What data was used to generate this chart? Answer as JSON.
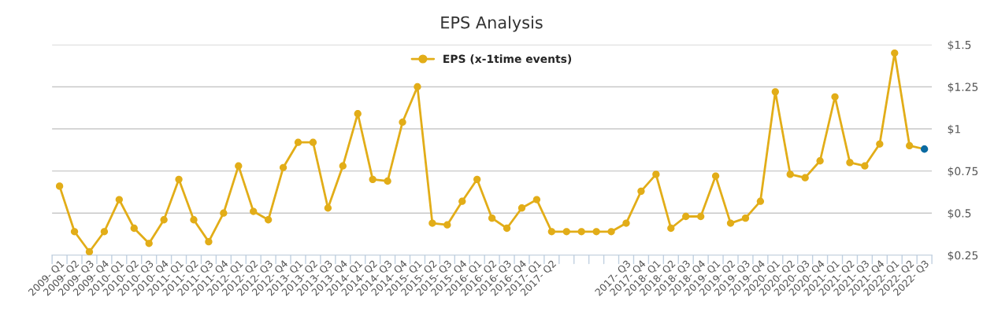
{
  "chart_data": {
    "type": "line",
    "title": "EPS Analysis",
    "categories": [
      "2009- Q1",
      "2009- Q2",
      "2009- Q3",
      "2009- Q4",
      "2010- Q1",
      "2010- Q2",
      "2010- Q3",
      "2010- Q4",
      "2011- Q1",
      "2011- Q2",
      "2011- Q3",
      "2011- Q4",
      "2012- Q1",
      "2012- Q2",
      "2012- Q3",
      "2012- Q4",
      "2013- Q1",
      "2013- Q2",
      "2013- Q3",
      "2013- Q4",
      "2014- Q1",
      "2014- Q2",
      "2014- Q3",
      "2014- Q4",
      "2015- Q1",
      "2015- Q2",
      "2015- Q3",
      "2015- Q4",
      "2016- Q1",
      "2016- Q2",
      "2016- Q3",
      "2016- Q4",
      "2017- Q1",
      "2017- Q2",
      null,
      null,
      null,
      null,
      "2017- Q3",
      "2017- Q4",
      "2018- Q1",
      "2018- Q2",
      "2018- Q3",
      "2018- Q4",
      "2019- Q1",
      "2019- Q2",
      "2019- Q3",
      "2019- Q4",
      "2020- Q1",
      "2020- Q2",
      "2020- Q3",
      "2020- Q4",
      "2021- Q1",
      "2021- Q2",
      "2021- Q3",
      "2021- Q4",
      "2022- Q1",
      "2022- Q2",
      "2022- Q3"
    ],
    "series": [
      {
        "name": "EPS (x-1time events)",
        "color": "#e2ad18",
        "colors": [
          "#e2ad18",
          "#e2ad18",
          "#e2ad18",
          "#e2ad18",
          "#e2ad18",
          "#e2ad18",
          "#e2ad18",
          "#e2ad18",
          "#e2ad18",
          "#e2ad18",
          "#e2ad18",
          "#e2ad18",
          "#e2ad18",
          "#e2ad18",
          "#e2ad18",
          "#e2ad18",
          "#e2ad18",
          "#e2ad18",
          "#e2ad18",
          "#e2ad18",
          "#e2ad18",
          "#e2ad18",
          "#e2ad18",
          "#e2ad18",
          "#e2ad18",
          "#e2ad18",
          "#e2ad18",
          "#e2ad18",
          "#e2ad18",
          "#e2ad18",
          "#e2ad18",
          "#e2ad18",
          "#e2ad18",
          "#e2ad18",
          "#e2ad18",
          "#e2ad18",
          "#e2ad18",
          "#e2ad18",
          "#e2ad18",
          "#e2ad18",
          "#e2ad18",
          "#e2ad18",
          "#e2ad18",
          "#e2ad18",
          "#e2ad18",
          "#e2ad18",
          "#e2ad18",
          "#e2ad18",
          "#e2ad18",
          "#e2ad18",
          "#e2ad18",
          "#e2ad18",
          "#e2ad18",
          "#e2ad18",
          "#e2ad18",
          "#e2ad18",
          "#e2ad18",
          "#e2ad18",
          "#0a6aa1"
        ],
        "values": [
          0.66,
          0.39,
          0.27,
          0.39,
          0.58,
          0.41,
          0.32,
          0.46,
          0.7,
          0.46,
          0.33,
          0.5,
          0.78,
          0.51,
          0.46,
          0.77,
          0.92,
          0.92,
          0.53,
          0.78,
          1.09,
          0.7,
          0.69,
          1.04,
          1.25,
          0.44,
          0.43,
          0.57,
          0.7,
          0.47,
          0.41,
          0.53,
          0.58,
          0.39,
          0.39,
          0.39,
          0.39,
          0.39,
          0.44,
          0.63,
          0.73,
          0.41,
          0.48,
          0.48,
          0.72,
          0.44,
          0.47,
          0.57,
          1.22,
          0.73,
          0.71,
          0.81,
          1.19,
          0.8,
          0.78,
          0.91,
          1.45,
          0.9,
          0.88
        ]
      }
    ],
    "ylim": [
      0.25,
      1.5
    ],
    "yticks": [
      {
        "value": 0.25,
        "label": "$0.25"
      },
      {
        "value": 0.5,
        "label": "$0.5"
      },
      {
        "value": 0.75,
        "label": "$0.75"
      },
      {
        "value": 1,
        "label": "$1"
      },
      {
        "value": 1.25,
        "label": "$1.25"
      },
      {
        "value": 1.5,
        "label": "$1.5"
      }
    ],
    "grid": "y",
    "legend": "top",
    "marker": "circle"
  }
}
